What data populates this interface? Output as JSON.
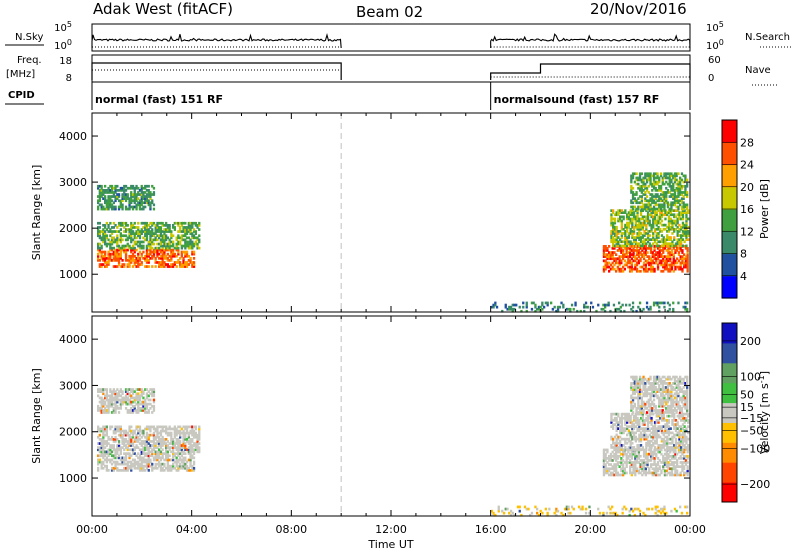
{
  "header": {
    "radar": "Adak West (fitACF)",
    "beam": "Beam 02",
    "date": "20/Nov/2016"
  },
  "params": {
    "nsky_label": "N.Sky",
    "nsky_ticks": [
      "10^5",
      "10^0"
    ],
    "freq_label_line1": "Freq.",
    "freq_label_line2": "[MHz]",
    "freq_ticks": [
      "18",
      "8"
    ],
    "nsearch_label": "N.Search",
    "nsearch_ticks": [
      "10^5",
      "10^0"
    ],
    "nave_label": "Nave",
    "nave_ticks": [
      "60",
      "0"
    ],
    "cpid_label": "CPID",
    "cpid_segments": [
      {
        "name": "normal (fast) 151 RF",
        "start": 0,
        "end": 10
      },
      {
        "name": "normalsound (fast) 157 RF",
        "start": 16,
        "end": 24
      }
    ]
  },
  "colors": {
    "power_scale": [
      "#0000ff",
      "#2050a0",
      "#3a8a6a",
      "#40a040",
      "#c8c800",
      "#ffa000",
      "#ff5000",
      "#ff0000"
    ],
    "velocity_scale": [
      "#ff0000",
      "#ff4500",
      "#ff8c00",
      "#ffc000",
      "#c8c8c0",
      "#40c040",
      "#60a060",
      "#3050a0",
      "#1010c0"
    ]
  },
  "chart_data": [
    {
      "type": "heatmap",
      "panel": "power",
      "ylabel": "Slant Range [km]",
      "xlabel": "Time UT",
      "x_ticks": [
        "00:00",
        "04:00",
        "08:00",
        "12:00",
        "16:00",
        "20:00",
        "00:00"
      ],
      "xlim": [
        0,
        24
      ],
      "y_ticks": [
        "1000",
        "2000",
        "3000",
        "4000"
      ],
      "ylim": [
        180,
        4500
      ],
      "colorbar_label": "Power [dB]",
      "colorbar_ticks": [
        "28",
        "24",
        "20",
        "16",
        "12",
        "8",
        "4"
      ],
      "crange": [
        0,
        32
      ],
      "data_gap": [
        10,
        16
      ],
      "regions": [
        {
          "t": [
            0.2,
            4.1
          ],
          "r": [
            1150,
            1550
          ],
          "v": 25
        },
        {
          "t": [
            0.2,
            4.3
          ],
          "r": [
            1550,
            2100
          ],
          "v": 14
        },
        {
          "t": [
            0.2,
            2.5
          ],
          "r": [
            2400,
            2900
          ],
          "v": 12
        },
        {
          "t": [
            20.5,
            23.9
          ],
          "r": [
            1050,
            1600
          ],
          "v": 26
        },
        {
          "t": [
            20.8,
            23.9
          ],
          "r": [
            1600,
            2400
          ],
          "v": 16
        },
        {
          "t": [
            21.6,
            23.9
          ],
          "r": [
            2400,
            3200
          ],
          "v": 14
        },
        {
          "t": [
            16.0,
            23.9
          ],
          "r": [
            180,
            400
          ],
          "v": 10
        }
      ]
    },
    {
      "type": "heatmap",
      "panel": "velocity",
      "ylabel": "Slant Range [km]",
      "xlabel": "Time UT",
      "x_ticks": [
        "00:00",
        "04:00",
        "08:00",
        "12:00",
        "16:00",
        "20:00",
        "00:00"
      ],
      "xlim": [
        0,
        24
      ],
      "y_ticks": [
        "1000",
        "2000",
        "3000",
        "4000"
      ],
      "ylim": [
        180,
        4500
      ],
      "colorbar_label": "Velocity [m s-1]",
      "colorbar_ticks": [
        "200",
        "100",
        "50",
        "15",
        "-15",
        "-50",
        "-100",
        "-200"
      ],
      "crange": [
        -250,
        250
      ],
      "data_gap": [
        10,
        16
      ],
      "regions": [
        {
          "t": [
            0.2,
            4.1
          ],
          "r": [
            1150,
            1550
          ],
          "v": 0
        },
        {
          "t": [
            0.2,
            4.3
          ],
          "r": [
            1550,
            2100
          ],
          "v": 0
        },
        {
          "t": [
            0.2,
            2.5
          ],
          "r": [
            2400,
            2900
          ],
          "v": 0
        },
        {
          "t": [
            20.5,
            23.9
          ],
          "r": [
            1050,
            1600
          ],
          "v": 0
        },
        {
          "t": [
            20.8,
            23.9
          ],
          "r": [
            1600,
            2400
          ],
          "v": 0
        },
        {
          "t": [
            21.6,
            23.9
          ],
          "r": [
            2400,
            3200
          ],
          "v": 5
        },
        {
          "t": [
            16.0,
            23.9
          ],
          "r": [
            180,
            400
          ],
          "v": -30
        }
      ]
    }
  ]
}
